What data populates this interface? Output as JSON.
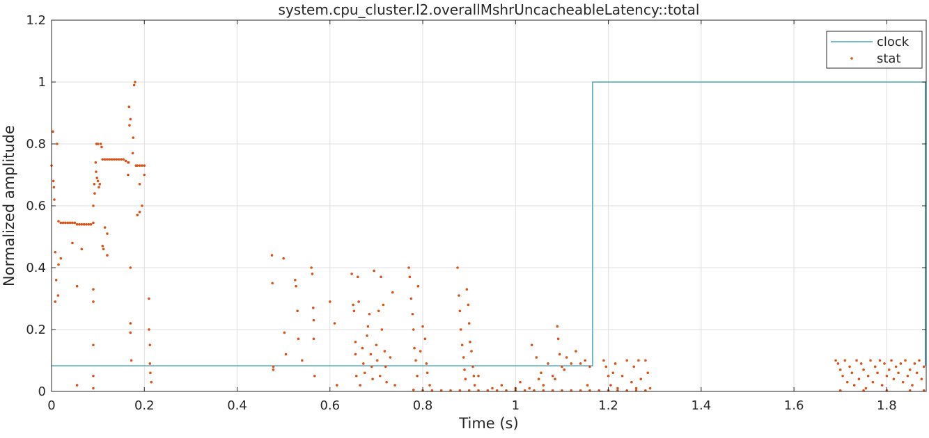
{
  "chart_data": {
    "type": "scatter",
    "title": "system.cpu_cluster.l2.overallMshrUncacheableLatency::total",
    "xlabel": "Time (s)",
    "ylabel": "Normalized amplitude",
    "xlim": [
      0,
      1.885
    ],
    "ylim": [
      0,
      1.2
    ],
    "xticks": [
      0,
      0.2,
      0.4,
      0.6,
      0.8,
      1,
      1.2,
      1.4,
      1.6,
      1.8
    ],
    "xtick_labels": [
      "0",
      "0.2",
      "0.4",
      "0.6",
      "0.8",
      "1",
      "1.2",
      "1.4",
      "1.6",
      "1.8"
    ],
    "yticks": [
      0,
      0.2,
      0.4,
      0.6,
      0.8,
      1,
      1.2
    ],
    "ytick_labels": [
      "0",
      "0.2",
      "0.4",
      "0.6",
      "0.8",
      "1",
      "1.2"
    ],
    "grid": true,
    "legend_position": "top-right",
    "series": [
      {
        "name": "clock",
        "kind": "line",
        "color": "#4ba3b8",
        "x": [
          0,
          1.166,
          1.166,
          1.883,
          1.883
        ],
        "y": [
          0.083,
          0.083,
          1.0,
          1.0,
          0.083
        ]
      },
      {
        "name": "stat",
        "kind": "scatter",
        "color": "#d95319",
        "points": [
          [
            0.0,
            0.73
          ],
          [
            0.003,
            0.84
          ],
          [
            0.004,
            0.68
          ],
          [
            0.005,
            0.66
          ],
          [
            0.006,
            0.62
          ],
          [
            0.008,
            0.29
          ],
          [
            0.008,
            0.45
          ],
          [
            0.01,
            0.36
          ],
          [
            0.012,
            0.8
          ],
          [
            0.014,
            0.31
          ],
          [
            0.015,
            0.55
          ],
          [
            0.02,
            0.545
          ],
          [
            0.025,
            0.545
          ],
          [
            0.03,
            0.545
          ],
          [
            0.035,
            0.545
          ],
          [
            0.04,
            0.545
          ],
          [
            0.045,
            0.545
          ],
          [
            0.05,
            0.545
          ],
          [
            0.055,
            0.54
          ],
          [
            0.06,
            0.54
          ],
          [
            0.065,
            0.54
          ],
          [
            0.07,
            0.54
          ],
          [
            0.075,
            0.54
          ],
          [
            0.08,
            0.54
          ],
          [
            0.085,
            0.54
          ],
          [
            0.09,
            0.545
          ],
          [
            0.015,
            0.41
          ],
          [
            0.02,
            0.43
          ],
          [
            0.045,
            0.48
          ],
          [
            0.055,
            0.34
          ],
          [
            0.055,
            0.02
          ],
          [
            0.065,
            0.46
          ],
          [
            0.09,
            0.05
          ],
          [
            0.09,
            0.01
          ],
          [
            0.09,
            0.15
          ],
          [
            0.09,
            0.29
          ],
          [
            0.09,
            0.33
          ],
          [
            0.09,
            0.6
          ],
          [
            0.092,
            0.67
          ],
          [
            0.093,
            0.64
          ],
          [
            0.095,
            0.74
          ],
          [
            0.096,
            0.71
          ],
          [
            0.097,
            0.8
          ],
          [
            0.098,
            0.69
          ],
          [
            0.1,
            0.8
          ],
          [
            0.1,
            0.68
          ],
          [
            0.102,
            0.66
          ],
          [
            0.104,
            0.67
          ],
          [
            0.106,
            0.8
          ],
          [
            0.108,
            0.79
          ],
          [
            0.11,
            0.75
          ],
          [
            0.115,
            0.75
          ],
          [
            0.12,
            0.75
          ],
          [
            0.125,
            0.75
          ],
          [
            0.13,
            0.75
          ],
          [
            0.135,
            0.75
          ],
          [
            0.14,
            0.75
          ],
          [
            0.145,
            0.75
          ],
          [
            0.15,
            0.75
          ],
          [
            0.155,
            0.75
          ],
          [
            0.16,
            0.745
          ],
          [
            0.165,
            0.74
          ],
          [
            0.115,
            0.53
          ],
          [
            0.11,
            0.47
          ],
          [
            0.112,
            0.46
          ],
          [
            0.12,
            0.51
          ],
          [
            0.12,
            0.44
          ],
          [
            0.165,
            0.7
          ],
          [
            0.166,
            0.74
          ],
          [
            0.167,
            0.92
          ],
          [
            0.168,
            0.86
          ],
          [
            0.17,
            0.88
          ],
          [
            0.17,
            0.4
          ],
          [
            0.17,
            0.22
          ],
          [
            0.17,
            0.19
          ],
          [
            0.172,
            0.1
          ],
          [
            0.175,
            0.77
          ],
          [
            0.176,
            0.82
          ],
          [
            0.178,
            0.99
          ],
          [
            0.18,
            1.0
          ],
          [
            0.182,
            0.73
          ],
          [
            0.185,
            0.73
          ],
          [
            0.19,
            0.73
          ],
          [
            0.195,
            0.73
          ],
          [
            0.2,
            0.73
          ],
          [
            0.185,
            0.57
          ],
          [
            0.19,
            0.58
          ],
          [
            0.195,
            0.6
          ],
          [
            0.19,
            0.67
          ],
          [
            0.2,
            0.7
          ],
          [
            0.21,
            0.3
          ],
          [
            0.21,
            0.2
          ],
          [
            0.212,
            0.15
          ],
          [
            0.212,
            0.09
          ],
          [
            0.213,
            0.06
          ],
          [
            0.215,
            0.03
          ],
          [
            0.475,
            0.44
          ],
          [
            0.476,
            0.35
          ],
          [
            0.478,
            0.07
          ],
          [
            0.478,
            0.08
          ],
          [
            0.5,
            0.43
          ],
          [
            0.502,
            0.19
          ],
          [
            0.505,
            0.12
          ],
          [
            0.525,
            0.36
          ],
          [
            0.527,
            0.34
          ],
          [
            0.53,
            0.26
          ],
          [
            0.532,
            0.17
          ],
          [
            0.54,
            0.1
          ],
          [
            0.56,
            0.4
          ],
          [
            0.562,
            0.38
          ],
          [
            0.564,
            0.27
          ],
          [
            0.565,
            0.23
          ],
          [
            0.565,
            0.17
          ],
          [
            0.567,
            0.05
          ],
          [
            0.6,
            0.29
          ],
          [
            0.61,
            0.22
          ],
          [
            0.615,
            0.02
          ],
          [
            0.647,
            0.38
          ],
          [
            0.65,
            0.28
          ],
          [
            0.652,
            0.26
          ],
          [
            0.655,
            0.16
          ],
          [
            0.655,
            0.12
          ],
          [
            0.657,
            0.05
          ],
          [
            0.66,
            0.37
          ],
          [
            0.662,
            0.29
          ],
          [
            0.665,
            0.02
          ],
          [
            0.67,
            0.14
          ],
          [
            0.672,
            0.09
          ],
          [
            0.675,
            0.06
          ],
          [
            0.68,
            0.18
          ],
          [
            0.682,
            0.21
          ],
          [
            0.685,
            0.25
          ],
          [
            0.688,
            0.12
          ],
          [
            0.69,
            0.08
          ],
          [
            0.692,
            0.04
          ],
          [
            0.695,
            0.39
          ],
          [
            0.7,
            0.15
          ],
          [
            0.702,
            0.1
          ],
          [
            0.705,
            0.26
          ],
          [
            0.708,
            0.05
          ],
          [
            0.71,
            0.37
          ],
          [
            0.712,
            0.2
          ],
          [
            0.715,
            0.28
          ],
          [
            0.718,
            0.13
          ],
          [
            0.72,
            0.08
          ],
          [
            0.722,
            0.03
          ],
          [
            0.73,
            0.11
          ],
          [
            0.735,
            0.32
          ],
          [
            0.74,
            0.02
          ],
          [
            0.77,
            0.4
          ],
          [
            0.772,
            0.37
          ],
          [
            0.775,
            0.3
          ],
          [
            0.778,
            0.25
          ],
          [
            0.78,
            0.2
          ],
          [
            0.782,
            0.14
          ],
          [
            0.785,
            0.1
          ],
          [
            0.788,
            0.05
          ],
          [
            0.79,
            0.34
          ],
          [
            0.795,
            0.13
          ],
          [
            0.8,
            0.21
          ],
          [
            0.805,
            0.17
          ],
          [
            0.808,
            0.09
          ],
          [
            0.81,
            0.06
          ],
          [
            0.815,
            0.02
          ],
          [
            0.78,
            0.005
          ],
          [
            0.8,
            0.003
          ],
          [
            0.82,
            0.003
          ],
          [
            0.84,
            0.003
          ],
          [
            0.86,
            0.003
          ],
          [
            0.88,
            0.003
          ],
          [
            0.875,
            0.4
          ],
          [
            0.878,
            0.31
          ],
          [
            0.88,
            0.26
          ],
          [
            0.882,
            0.2
          ],
          [
            0.885,
            0.15
          ],
          [
            0.888,
            0.11
          ],
          [
            0.89,
            0.07
          ],
          [
            0.892,
            0.04
          ],
          [
            0.895,
            0.33
          ],
          [
            0.898,
            0.28
          ],
          [
            0.9,
            0.22
          ],
          [
            0.902,
            0.16
          ],
          [
            0.905,
            0.13
          ],
          [
            0.908,
            0.08
          ],
          [
            0.91,
            0.05
          ],
          [
            0.912,
            0.02
          ],
          [
            0.92,
            0.05
          ],
          [
            0.9,
            0.003
          ],
          [
            0.92,
            0.003
          ],
          [
            0.94,
            0.003
          ],
          [
            0.96,
            0.003
          ],
          [
            0.98,
            0.003
          ],
          [
            1.0,
            0.003
          ],
          [
            1.02,
            0.003
          ],
          [
            1.04,
            0.003
          ],
          [
            1.06,
            0.003
          ],
          [
            1.08,
            0.003
          ],
          [
            1.1,
            0.003
          ],
          [
            1.12,
            0.003
          ],
          [
            1.14,
            0.003
          ],
          [
            1.16,
            0.003
          ],
          [
            0.95,
            0.01
          ],
          [
            0.97,
            0.02
          ],
          [
            1.0,
            0.01
          ],
          [
            1.01,
            0.03
          ],
          [
            1.03,
            0.01
          ],
          [
            1.05,
            0.04
          ],
          [
            1.055,
            0.06
          ],
          [
            1.06,
            0.02
          ],
          [
            1.07,
            0.09
          ],
          [
            1.08,
            0.05
          ],
          [
            1.085,
            0.04
          ],
          [
            1.09,
            0.21
          ],
          [
            1.092,
            0.17
          ],
          [
            1.095,
            0.12
          ],
          [
            1.1,
            0.08
          ],
          [
            1.105,
            0.07
          ],
          [
            1.11,
            0.11
          ],
          [
            1.12,
            0.09
          ],
          [
            1.13,
            0.13
          ],
          [
            1.14,
            0.09
          ],
          [
            1.15,
            0.1
          ],
          [
            1.155,
            0.02
          ],
          [
            1.16,
            0.08
          ],
          [
            1.035,
            0.15
          ],
          [
            1.045,
            0.11
          ],
          [
            1.19,
            0.1
          ],
          [
            1.195,
            0.08
          ],
          [
            1.2,
            0.05
          ],
          [
            1.205,
            0.02
          ],
          [
            1.21,
            0.06
          ],
          [
            1.215,
            0.09
          ],
          [
            1.22,
            0.01
          ],
          [
            1.23,
            0.05
          ],
          [
            1.24,
            0.1
          ],
          [
            1.25,
            0.03
          ],
          [
            1.255,
            0.08
          ],
          [
            1.26,
            0.01
          ],
          [
            1.265,
            0.1
          ],
          [
            1.27,
            0.04
          ],
          [
            1.28,
            0.1
          ],
          [
            1.285,
            0.06
          ],
          [
            1.29,
            0.01
          ],
          [
            1.18,
            0.003
          ],
          [
            1.2,
            0.003
          ],
          [
            1.22,
            0.003
          ],
          [
            1.24,
            0.003
          ],
          [
            1.26,
            0.003
          ],
          [
            1.28,
            0.003
          ],
          [
            1.69,
            0.1
          ],
          [
            1.695,
            0.09
          ],
          [
            1.7,
            0.07
          ],
          [
            1.705,
            0.05
          ],
          [
            1.71,
            0.1
          ],
          [
            1.715,
            0.03
          ],
          [
            1.72,
            0.08
          ],
          [
            1.725,
            0.06
          ],
          [
            1.73,
            0.02
          ],
          [
            1.735,
            0.1
          ],
          [
            1.74,
            0.04
          ],
          [
            1.745,
            0.09
          ],
          [
            1.75,
            0.07
          ],
          [
            1.755,
            0.01
          ],
          [
            1.76,
            0.05
          ],
          [
            1.765,
            0.1
          ],
          [
            1.77,
            0.03
          ],
          [
            1.775,
            0.08
          ],
          [
            1.78,
            0.06
          ],
          [
            1.785,
            0.1
          ],
          [
            1.79,
            0.02
          ],
          [
            1.795,
            0.09
          ],
          [
            1.8,
            0.05
          ],
          [
            1.805,
            0.07
          ],
          [
            1.81,
            0.1
          ],
          [
            1.815,
            0.04
          ],
          [
            1.82,
            0.08
          ],
          [
            1.825,
            0.06
          ],
          [
            1.83,
            0.09
          ],
          [
            1.835,
            0.03
          ],
          [
            1.84,
            0.1
          ],
          [
            1.845,
            0.05
          ],
          [
            1.85,
            0.07
          ],
          [
            1.855,
            0.02
          ],
          [
            1.86,
            0.09
          ],
          [
            1.865,
            0.06
          ],
          [
            1.87,
            0.1
          ],
          [
            1.875,
            0.04
          ],
          [
            1.88,
            0.08
          ],
          [
            1.7,
            0.003
          ],
          [
            1.75,
            0.003
          ],
          [
            1.8,
            0.003
          ],
          [
            1.85,
            0.003
          ],
          [
            1.88,
            0.003
          ]
        ]
      }
    ]
  }
}
